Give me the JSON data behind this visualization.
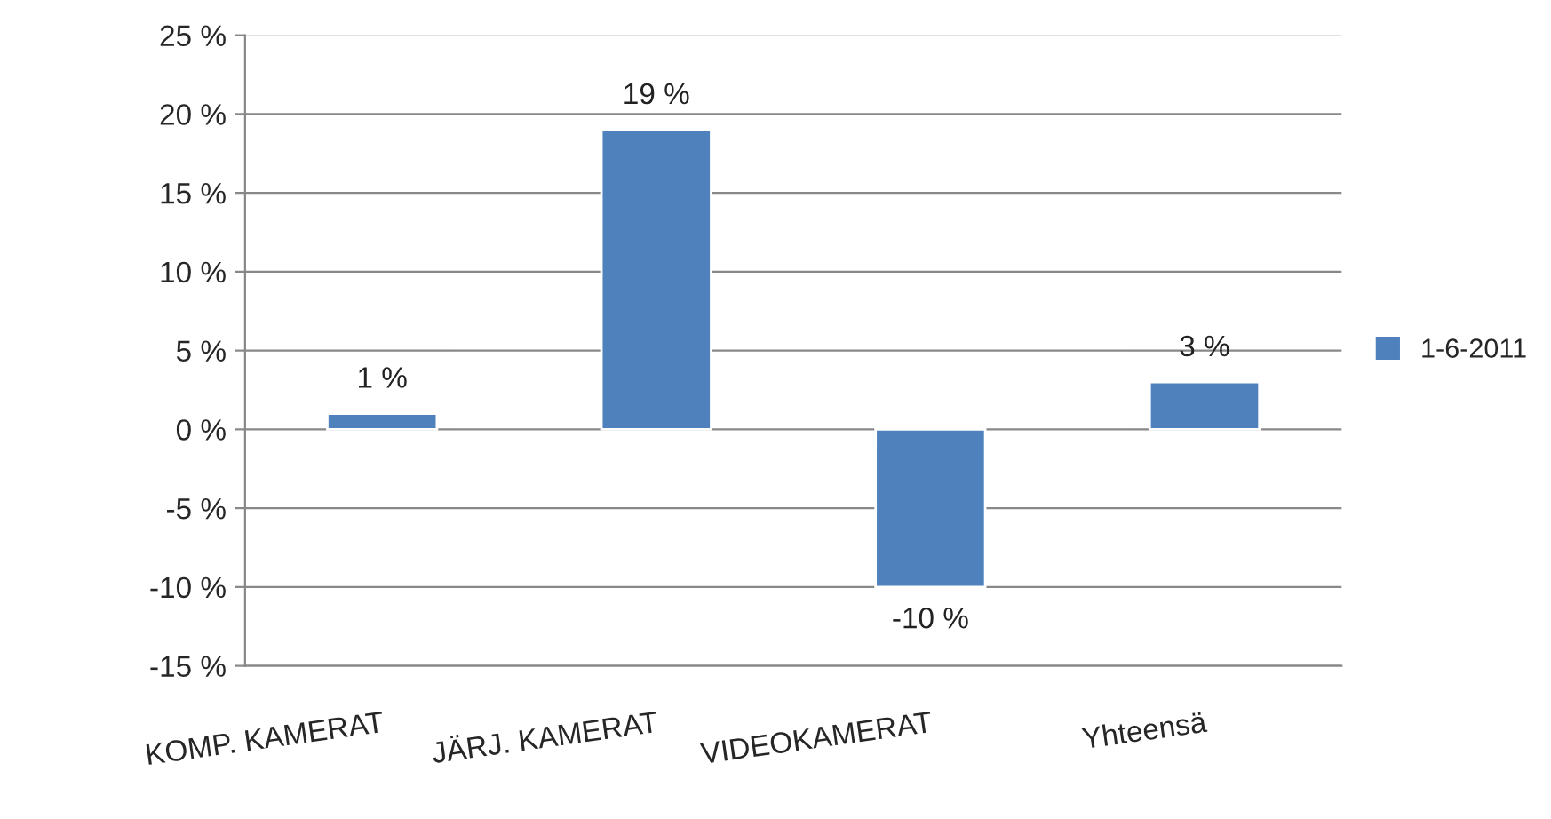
{
  "chart_data": {
    "type": "bar",
    "categories": [
      "KOMP. KAMERAT",
      "JÄRJ. KAMERAT",
      "VIDEOKAMERAT",
      "Yhteensä"
    ],
    "series": [
      {
        "name": "1-6-2011",
        "color": "#4f81bd",
        "values": [
          1,
          19,
          -10,
          3
        ]
      }
    ],
    "value_labels": [
      "1 %",
      "19 %",
      "-10 %",
      "3 %"
    ],
    "ylim": [
      -15,
      25
    ],
    "yticks": [
      {
        "value": -15,
        "label": "-15 %"
      },
      {
        "value": -10,
        "label": "-10 %"
      },
      {
        "value": -5,
        "label": "-5 %"
      },
      {
        "value": 0,
        "label": "0 %"
      },
      {
        "value": 5,
        "label": "5 %"
      },
      {
        "value": 10,
        "label": "10 %"
      },
      {
        "value": 15,
        "label": "15 %"
      },
      {
        "value": 20,
        "label": "20 %"
      },
      {
        "value": 25,
        "label": "25 %"
      }
    ],
    "grid": "y",
    "legend": "right"
  }
}
